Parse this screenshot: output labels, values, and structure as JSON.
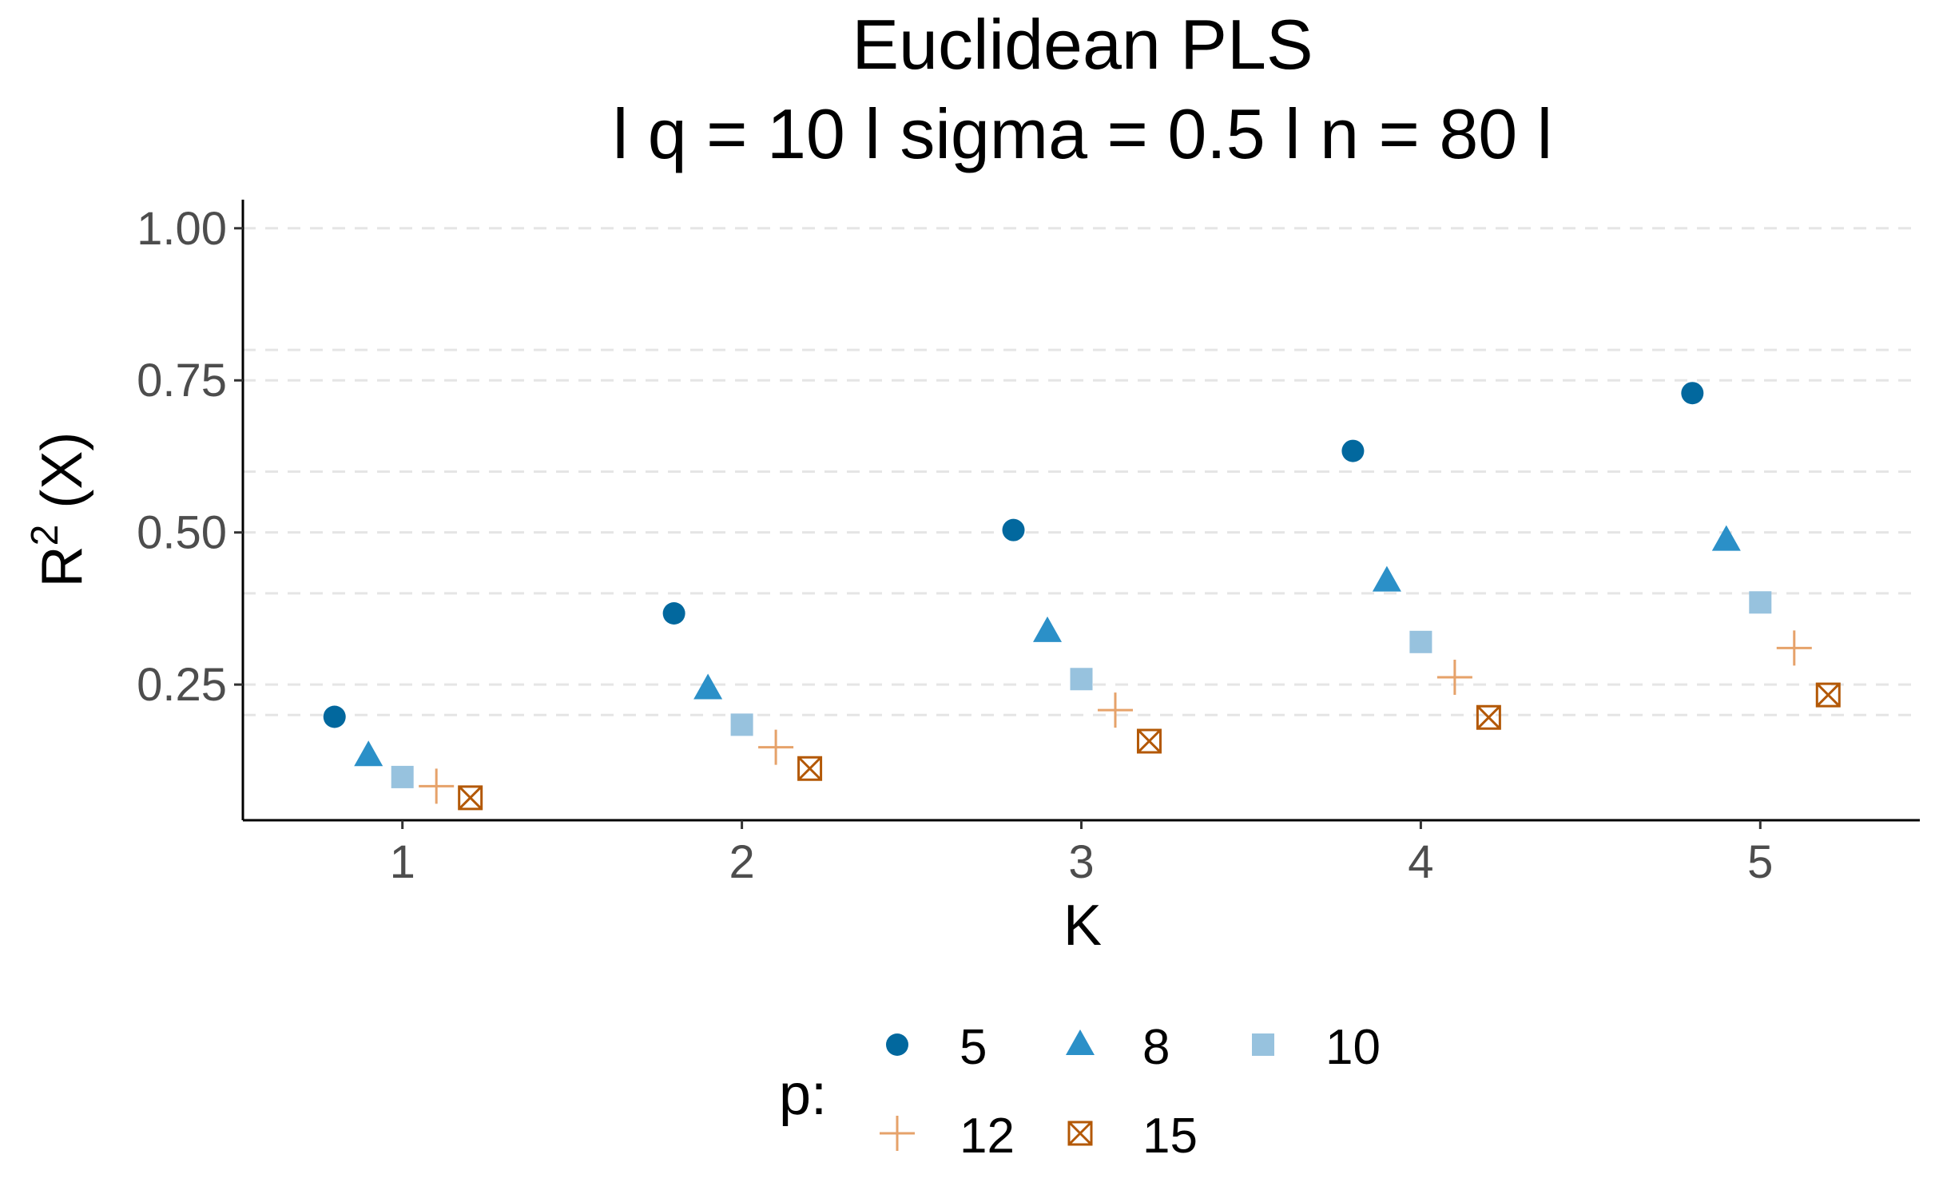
{
  "chart_data": {
    "type": "scatter",
    "title_line1": "Euclidean PLS",
    "title_line2": "l q = 10 l sigma = 0.5 l n = 80 l",
    "xlabel": "K",
    "ylabel_main": "R",
    "ylabel_sup": "2",
    "ylabel_rest": " (X)",
    "x_ticks": [
      "1",
      "2",
      "3",
      "4",
      "5"
    ],
    "y_ticks": [
      "0.25",
      "0.50",
      "0.75",
      "1.00"
    ],
    "y_tick_values": [
      0.25,
      0.5,
      0.75,
      1.0
    ],
    "y_minor_gridlines": [
      0.2,
      0.4,
      0.6,
      0.8
    ],
    "xlim": [
      0.53,
      5.47
    ],
    "ylim": [
      0.027,
      1.047
    ],
    "grid": "horizontal dashed",
    "legend_position": "bottom",
    "legend_title": "p:",
    "x": [
      1,
      2,
      3,
      4,
      5
    ],
    "series": [
      {
        "name": "5",
        "shape": "circle",
        "color": "#02689e",
        "offset": -0.2,
        "values": [
          0.197,
          0.367,
          0.504,
          0.634,
          0.729
        ]
      },
      {
        "name": "8",
        "shape": "triangle",
        "color": "#2b90c8",
        "offset": -0.1,
        "values": [
          0.133,
          0.243,
          0.337,
          0.42,
          0.487
        ]
      },
      {
        "name": "10",
        "shape": "square",
        "color": "#97c2de",
        "offset": 0.0,
        "values": [
          0.098,
          0.184,
          0.259,
          0.32,
          0.385
        ]
      },
      {
        "name": "12",
        "shape": "plus",
        "color": "#e6a26a",
        "offset": 0.1,
        "values": [
          0.083,
          0.147,
          0.208,
          0.262,
          0.31
        ]
      },
      {
        "name": "15",
        "shape": "square-cross",
        "color": "#b35806",
        "offset": 0.2,
        "values": [
          0.064,
          0.112,
          0.157,
          0.196,
          0.233
        ]
      }
    ]
  }
}
